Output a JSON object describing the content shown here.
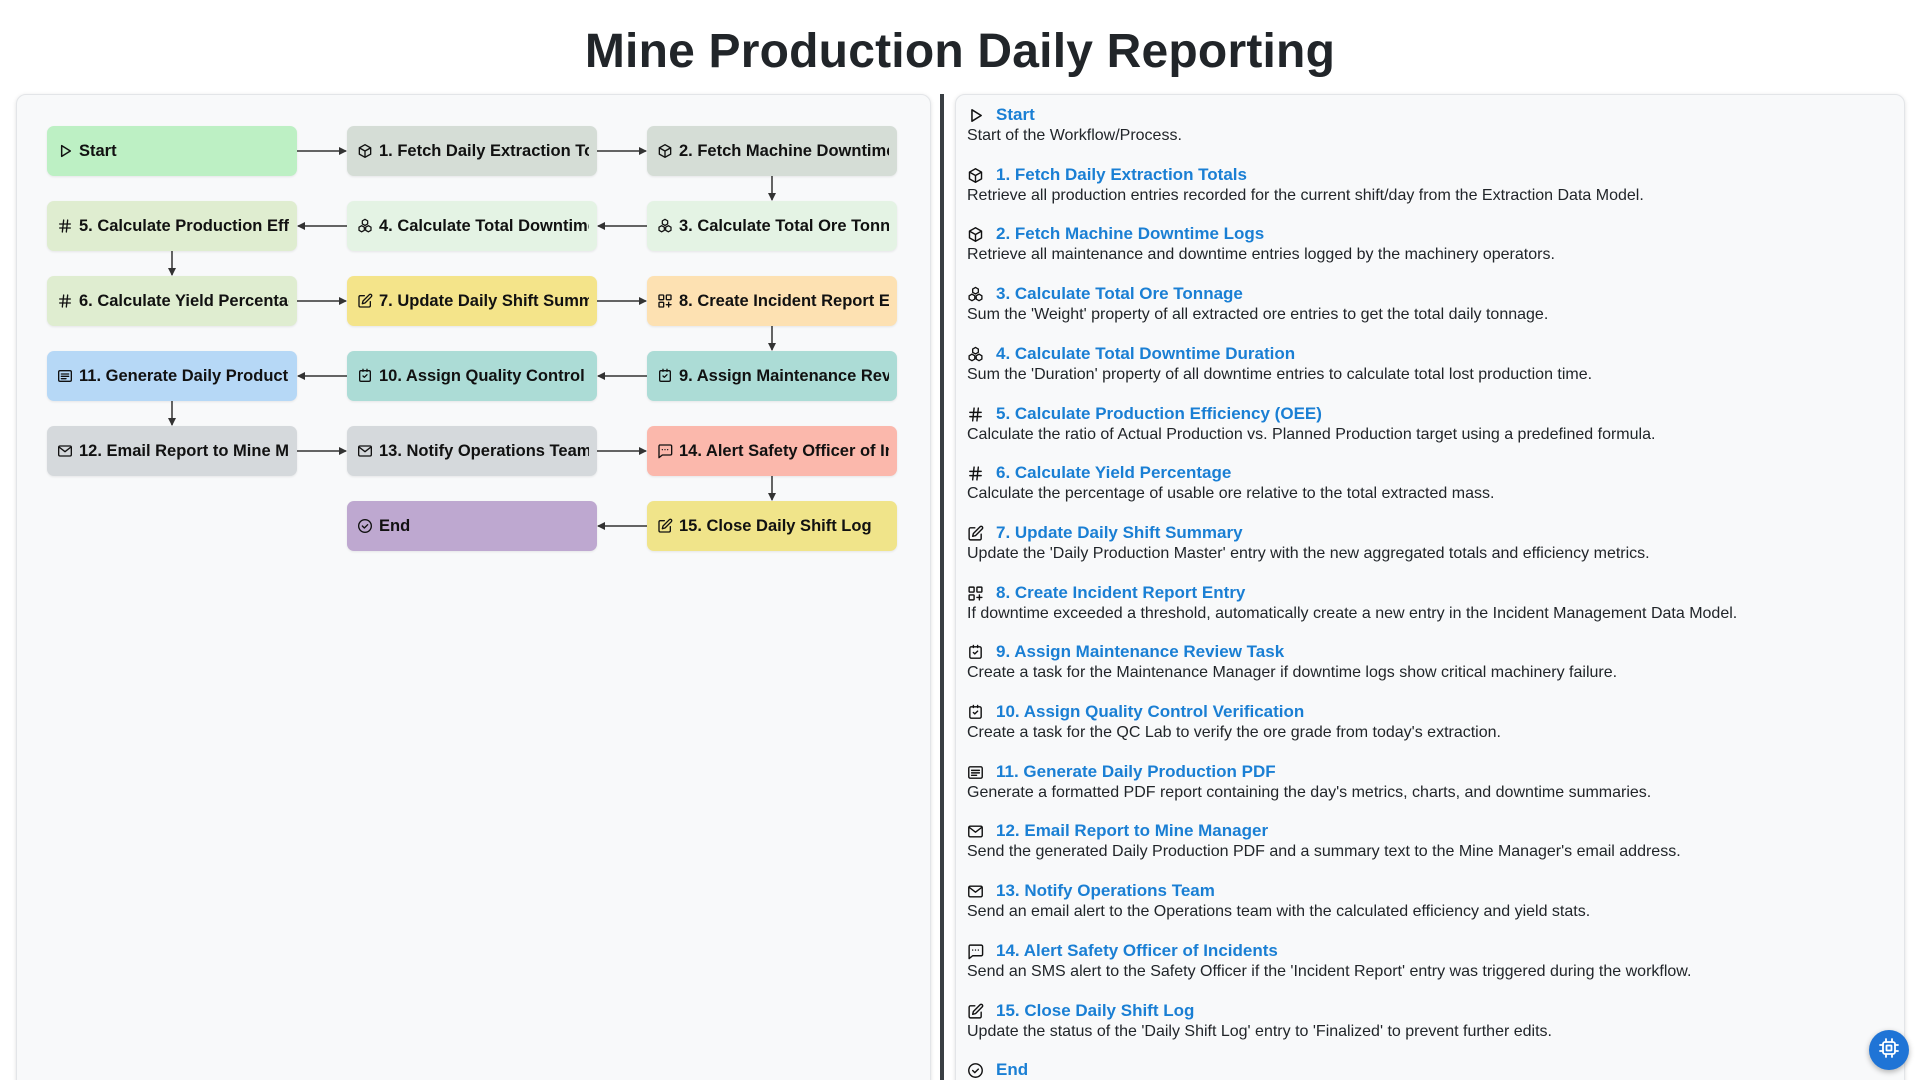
{
  "page": {
    "title": "Mine Production Daily Reporting"
  },
  "flow": {
    "nodes": [
      {
        "id": "start",
        "label": "Start",
        "icon": "play-icon",
        "color": "#bdf0c4"
      },
      {
        "id": "n1",
        "label": "1. Fetch Daily Extraction Totals",
        "icon": "cube-icon",
        "color": "#d5ddd6"
      },
      {
        "id": "n2",
        "label": "2. Fetch Machine Downtime Logs",
        "icon": "cube-icon",
        "color": "#d5ddd6"
      },
      {
        "id": "n3",
        "label": "3. Calculate Total Ore Tonnage",
        "icon": "boxes-icon",
        "color": "#e4f3e4"
      },
      {
        "id": "n4",
        "label": "4. Calculate Total Downtime Duration",
        "icon": "boxes-icon",
        "color": "#e4f3e4"
      },
      {
        "id": "n5",
        "label": "5. Calculate Production Efficiency (OEE)",
        "icon": "hash-icon",
        "color": "#dfedd0"
      },
      {
        "id": "n6",
        "label": "6. Calculate Yield Percentage",
        "icon": "hash-icon",
        "color": "#dfedd0"
      },
      {
        "id": "n7",
        "label": "7. Update Daily Shift Summary",
        "icon": "edit-icon",
        "color": "#f4e48a"
      },
      {
        "id": "n8",
        "label": "8. Create Incident Report Entry",
        "icon": "grid-plus-icon",
        "color": "#fde1b2"
      },
      {
        "id": "n9",
        "label": "9. Assign Maintenance Review Task",
        "icon": "checkbox-icon",
        "color": "#acdcd6"
      },
      {
        "id": "n10",
        "label": "10. Assign Quality Control Verification",
        "icon": "checkbox-icon",
        "color": "#acdcd6"
      },
      {
        "id": "n11",
        "label": "11. Generate Daily Production PDF",
        "icon": "document-icon",
        "color": "#b6d8f6"
      },
      {
        "id": "n12",
        "label": "12. Email Report to Mine Manager",
        "icon": "mail-icon",
        "color": "#d5d9dc"
      },
      {
        "id": "n13",
        "label": "13. Notify Operations Team",
        "icon": "mail-icon",
        "color": "#d5d9dc"
      },
      {
        "id": "n14",
        "label": "14. Alert Safety Officer of Incidents",
        "icon": "message-icon",
        "color": "#fbb8ac"
      },
      {
        "id": "n15",
        "label": "15. Close Daily Shift Log",
        "icon": "edit-icon",
        "color": "#f0e48a"
      },
      {
        "id": "end",
        "label": "End",
        "icon": "check-circle-icon",
        "color": "#bea8d0"
      }
    ]
  },
  "details": [
    {
      "title": "Start",
      "icon": "play-icon",
      "description": "Start of the Workflow/Process."
    },
    {
      "title": "1. Fetch Daily Extraction Totals",
      "icon": "cube-icon",
      "description": "Retrieve all production entries recorded for the current shift/day from the Extraction Data Model."
    },
    {
      "title": "2. Fetch Machine Downtime Logs",
      "icon": "cube-icon",
      "description": "Retrieve all maintenance and downtime entries logged by the machinery operators."
    },
    {
      "title": "3. Calculate Total Ore Tonnage",
      "icon": "boxes-icon",
      "description": "Sum the 'Weight' property of all extracted ore entries to get the total daily tonnage."
    },
    {
      "title": "4. Calculate Total Downtime Duration",
      "icon": "boxes-icon",
      "description": "Sum the 'Duration' property of all downtime entries to calculate total lost production time."
    },
    {
      "title": "5. Calculate Production Efficiency (OEE)",
      "icon": "hash-icon",
      "description": "Calculate the ratio of Actual Production vs. Planned Production target using a predefined formula."
    },
    {
      "title": "6. Calculate Yield Percentage",
      "icon": "hash-icon",
      "description": "Calculate the percentage of usable ore relative to the total extracted mass."
    },
    {
      "title": "7. Update Daily Shift Summary",
      "icon": "edit-icon",
      "description": "Update the 'Daily Production Master' entry with the new aggregated totals and efficiency metrics."
    },
    {
      "title": "8. Create Incident Report Entry",
      "icon": "grid-plus-icon",
      "description": "If downtime exceeded a threshold, automatically create a new entry in the Incident Management Data Model."
    },
    {
      "title": "9. Assign Maintenance Review Task",
      "icon": "checkbox-icon",
      "description": "Create a task for the Maintenance Manager if downtime logs show critical machinery failure."
    },
    {
      "title": "10. Assign Quality Control Verification",
      "icon": "checkbox-icon",
      "description": "Create a task for the QC Lab to verify the ore grade from today's extraction."
    },
    {
      "title": "11. Generate Daily Production PDF",
      "icon": "document-icon",
      "description": "Generate a formatted PDF report containing the day's metrics, charts, and downtime summaries."
    },
    {
      "title": "12. Email Report to Mine Manager",
      "icon": "mail-icon",
      "description": "Send the generated Daily Production PDF and a summary text to the Mine Manager's email address."
    },
    {
      "title": "13. Notify Operations Team",
      "icon": "mail-icon",
      "description": "Send an email alert to the Operations team with the calculated efficiency and yield stats."
    },
    {
      "title": "14. Alert Safety Officer of Incidents",
      "icon": "message-icon",
      "description": "Send an SMS alert to the Safety Officer if the 'Incident Report' entry was triggered during the workflow."
    },
    {
      "title": "15. Close Daily Shift Log",
      "icon": "edit-icon",
      "description": "Update the status of the 'Daily Shift Log' entry to 'Finalized' to prevent further edits."
    },
    {
      "title": "End",
      "icon": "check-circle-icon",
      "description": ""
    }
  ],
  "assistant": {
    "icon": "chip-icon"
  }
}
